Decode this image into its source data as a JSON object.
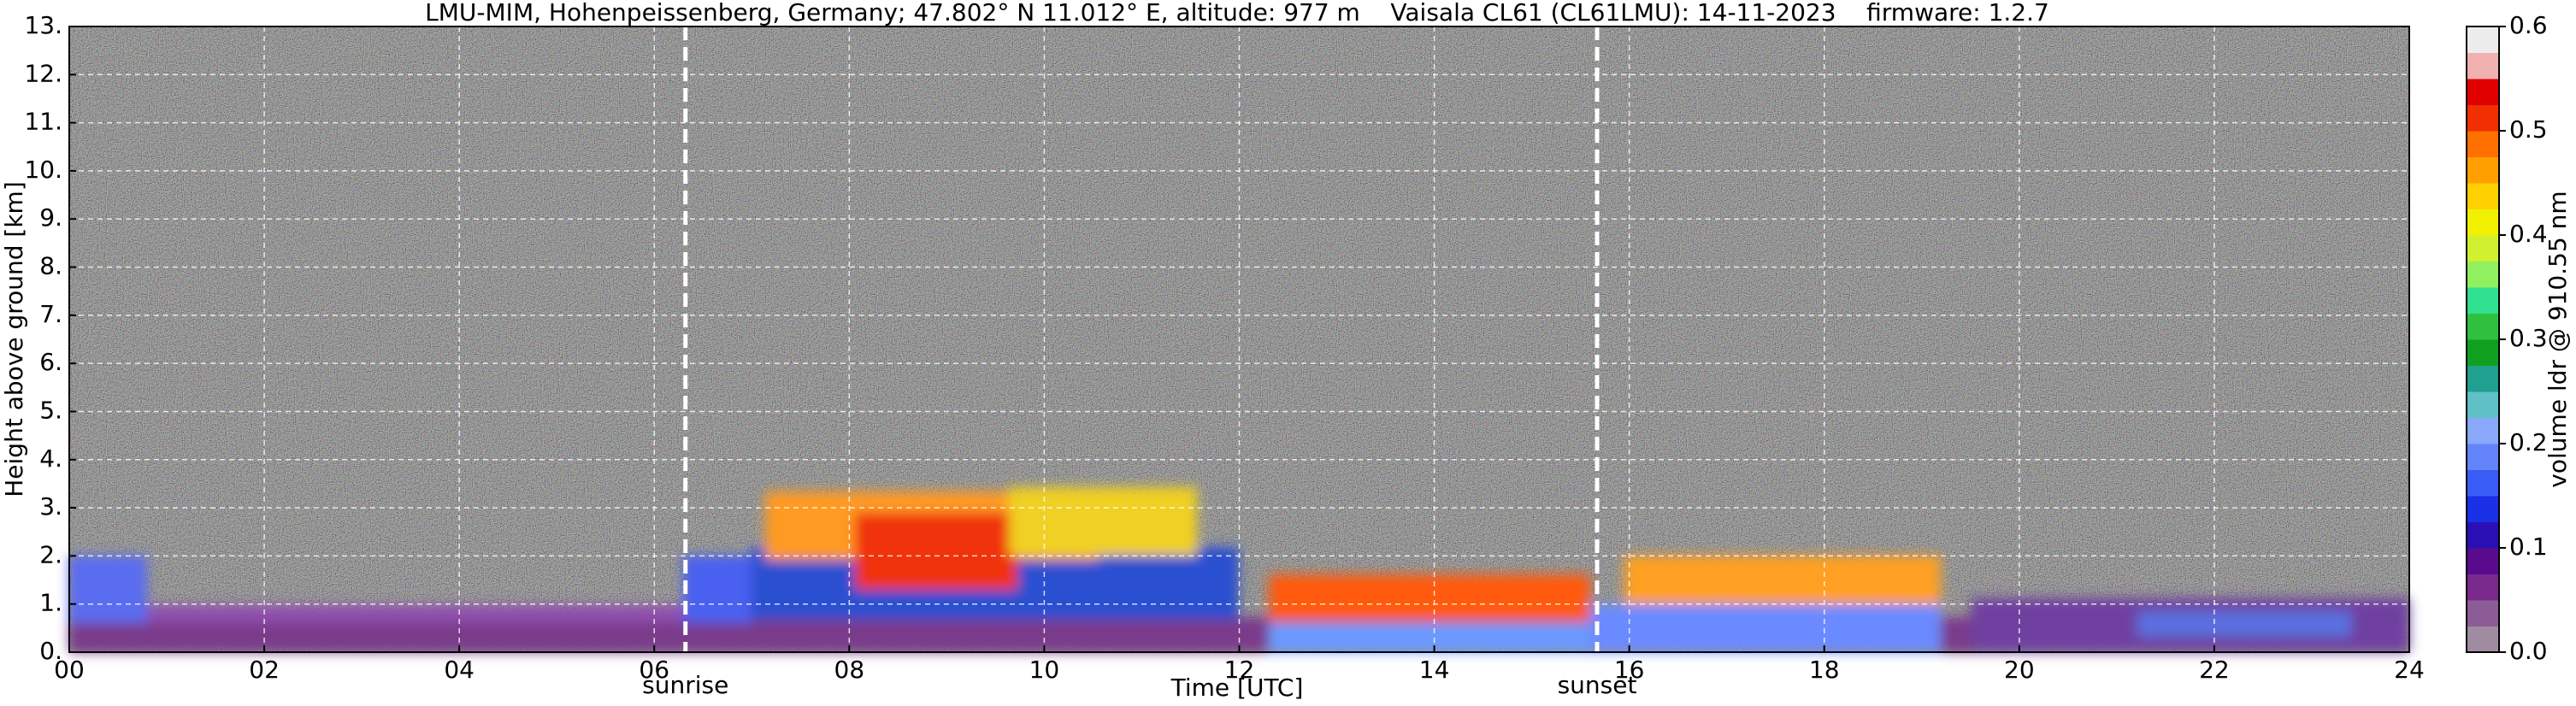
{
  "chart_data": {
    "type": "heatmap",
    "title": "LMU-MIM, Hohenpeissenberg, Germany; 47.802° N 11.012° E, altitude: 977 m    Vaisala CL61 (CL61LMU): 14-11-2023    firmware: 1.2.7",
    "xlabel": "Time [UTC]",
    "ylabel": "Height above ground [km]",
    "xlim": [
      0,
      24
    ],
    "xticks": [
      {
        "value": 0,
        "label": "00"
      },
      {
        "value": 2,
        "label": "02"
      },
      {
        "value": 4,
        "label": "04"
      },
      {
        "value": 6,
        "label": "06"
      },
      {
        "value": 8,
        "label": "08"
      },
      10,
      12,
      14,
      16,
      18,
      20,
      22,
      24
    ],
    "ylim": [
      0,
      13
    ],
    "yticks": [
      {
        "value": 0,
        "label": "0."
      },
      {
        "value": 1,
        "label": "1."
      },
      {
        "value": 2,
        "label": "2."
      },
      {
        "value": 3,
        "label": "3."
      },
      {
        "value": 4,
        "label": "4."
      },
      {
        "value": 5,
        "label": "5."
      },
      {
        "value": 6,
        "label": "6."
      },
      {
        "value": 7,
        "label": "7."
      },
      {
        "value": 8,
        "label": "8."
      },
      {
        "value": 9,
        "label": "9."
      },
      {
        "value": 10,
        "label": "10."
      },
      {
        "value": 11,
        "label": "11."
      },
      {
        "value": 12,
        "label": "12."
      },
      {
        "value": 13,
        "label": "13."
      }
    ],
    "grid": true,
    "annotations": [
      {
        "text": "sunrise",
        "x": 6.32
      },
      {
        "text": "sunset",
        "x": 15.67
      }
    ],
    "colorbar": {
      "label": "volume ldr @ 910.55 nm",
      "lim": [
        0,
        0.6
      ],
      "ticks": [
        {
          "value": 0,
          "label": "0.0"
        },
        0.1,
        0.2,
        0.3,
        0.4,
        0.5,
        0.6
      ],
      "colors": [
        "#a08ca0",
        "#8c5c96",
        "#7a2a8c",
        "#5a0a8c",
        "#2a10b4",
        "#1a30e6",
        "#3a5cf6",
        "#6484fa",
        "#8aa8fa",
        "#60c0c8",
        "#20a090",
        "#10a020",
        "#30c040",
        "#30e090",
        "#90f060",
        "#d0f030",
        "#f0f000",
        "#ffd000",
        "#ffa000",
        "#ff7000",
        "#f03000",
        "#e00000",
        "#f0b0b0",
        "#ececec"
      ]
    }
  }
}
